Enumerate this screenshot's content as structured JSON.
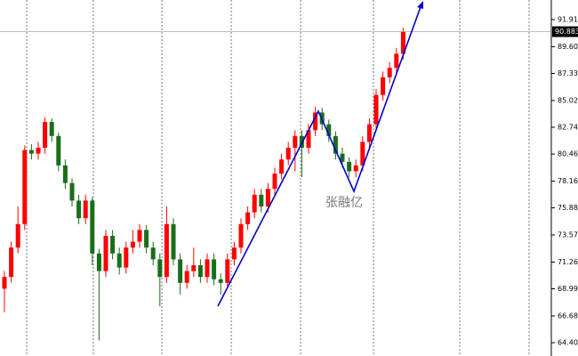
{
  "chart_data": {
    "type": "candlestick",
    "annotation": "张融亿",
    "up_color": "#ff0000",
    "down_color": "#1a6e1a",
    "ylim": [
      63.27,
      93.58
    ],
    "yticks": [
      91.915,
      89.605,
      {
        "value": 87.33,
        "label": "87.330"
      },
      {
        "value": 85.02,
        "label": "85.020"
      },
      82.745,
      80.465,
      {
        "value": 78.16,
        "label": "78.160"
      },
      75.885,
      73.575,
      71.265,
      {
        "value": 68.99,
        "label": "68.990"
      },
      {
        "value": 66.68,
        "label": "66.680"
      },
      64.405
    ],
    "last_price": 90.883,
    "open": [
      69.0,
      70.0,
      72.5,
      74.5,
      80.8,
      80.5,
      81.0,
      83.2,
      82.0,
      79.5,
      78.0,
      76.5,
      75.0,
      76.5,
      72.0,
      70.5,
      73.5,
      72.0,
      70.8,
      72.5,
      73.0,
      74.0,
      72.5,
      71.5,
      70.0,
      74.5,
      71.5,
      69.5,
      70.5,
      71.0,
      70.0,
      71.5,
      69.8,
      69.5,
      71.5,
      72.5,
      74.5,
      75.5,
      77.0,
      76.0,
      77.5,
      78.8,
      80.0,
      81.0,
      82.0,
      81.0,
      82.5,
      84.0,
      83.0,
      82.0,
      80.5,
      79.8,
      79.0,
      79.5,
      81.5,
      83.0,
      85.5,
      87.0,
      87.8,
      89.0
    ],
    "high": [
      70.5,
      73.0,
      76.0,
      81.2,
      81.3,
      81.5,
      83.6,
      83.5,
      82.3,
      80.0,
      78.4,
      77.0,
      77.0,
      76.8,
      72.4,
      74.0,
      74.0,
      72.5,
      73.0,
      74.0,
      74.5,
      74.4,
      73.0,
      72.0,
      76.0,
      75.0,
      72.0,
      71.0,
      72.5,
      71.5,
      72.0,
      72.0,
      70.3,
      72.0,
      73.0,
      75.0,
      76.0,
      77.5,
      77.5,
      78.0,
      79.3,
      80.5,
      81.5,
      82.5,
      82.5,
      83.0,
      84.5,
      84.4,
      83.4,
      82.4,
      81.0,
      80.2,
      80.0,
      82.0,
      83.5,
      86.0,
      87.5,
      88.3,
      89.5,
      91.2
    ],
    "low": [
      67.0,
      69.5,
      72.0,
      74.0,
      80.0,
      80.0,
      80.5,
      81.5,
      79.0,
      77.5,
      76.0,
      74.5,
      74.5,
      71.0,
      64.6,
      70.0,
      71.5,
      70.2,
      70.3,
      72.0,
      72.5,
      72.0,
      71.0,
      67.5,
      69.5,
      71.0,
      68.5,
      69.0,
      70.0,
      69.5,
      69.5,
      69.3,
      68.5,
      69.0,
      71.0,
      72.0,
      74.0,
      75.0,
      75.5,
      75.5,
      77.0,
      78.3,
      79.5,
      79.0,
      78.5,
      80.5,
      82.0,
      82.5,
      81.5,
      80.0,
      79.3,
      78.5,
      78.5,
      79.0,
      81.0,
      82.5,
      85.0,
      86.5,
      87.3,
      88.5
    ],
    "close": [
      70.0,
      72.5,
      74.5,
      80.8,
      80.5,
      81.0,
      83.2,
      82.0,
      79.5,
      78.0,
      76.5,
      75.0,
      76.5,
      72.0,
      70.5,
      73.5,
      72.0,
      70.8,
      72.5,
      73.0,
      74.0,
      72.5,
      71.5,
      70.0,
      74.5,
      71.5,
      69.5,
      70.5,
      71.0,
      70.0,
      71.5,
      69.8,
      69.5,
      71.5,
      72.5,
      74.5,
      75.5,
      77.0,
      76.0,
      77.5,
      78.8,
      80.0,
      81.0,
      82.0,
      81.0,
      82.5,
      84.0,
      83.0,
      82.0,
      80.5,
      79.8,
      79.0,
      79.5,
      81.5,
      83.0,
      85.5,
      87.0,
      87.8,
      89.0,
      90.883
    ]
  }
}
